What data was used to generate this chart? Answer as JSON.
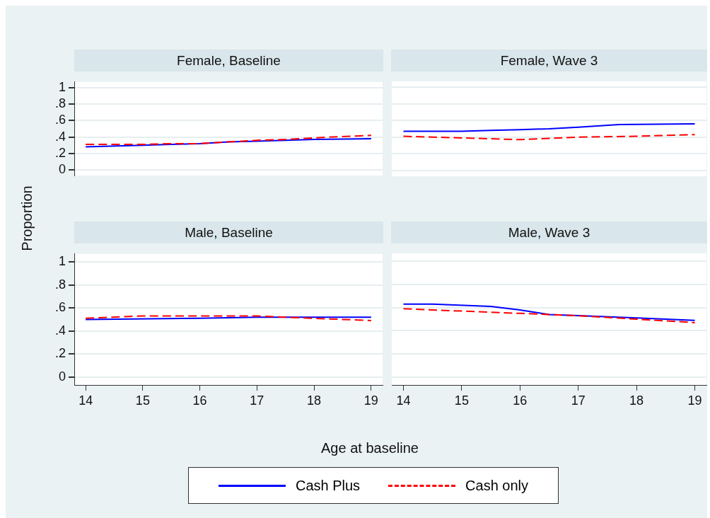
{
  "chart_data": [
    {
      "type": "line",
      "title": "Female, Baseline",
      "legend": "bottom",
      "xlim": [
        13.8,
        19.2
      ],
      "ylim": [
        -0.07,
        1.07
      ],
      "yticks": [
        0,
        {
          "value": 0.2,
          "label": ".2"
        },
        {
          "value": 0.4,
          "label": ".4"
        },
        {
          "value": 0.6,
          "label": ".6"
        },
        {
          "value": 0.8,
          "label": ".8"
        },
        1
      ],
      "grid": "y",
      "tick_labels": "y",
      "series": [
        {
          "name": "Cash Plus",
          "color": "#0000ff",
          "line_style": "solid",
          "x": [
            14,
            15,
            15.5,
            16,
            16.5,
            17,
            17.5,
            18,
            19
          ],
          "values": [
            0.28,
            0.3,
            0.31,
            0.32,
            0.34,
            0.35,
            0.36,
            0.37,
            0.38
          ]
        },
        {
          "name": "Cash only",
          "color": "#ff0000",
          "line_style": "dashed",
          "x": [
            14,
            15,
            15.5,
            16,
            16.5,
            17,
            17.5,
            18,
            19
          ],
          "values": [
            0.31,
            0.31,
            0.32,
            0.32,
            0.34,
            0.36,
            0.37,
            0.39,
            0.42
          ]
        }
      ]
    },
    {
      "type": "line",
      "title": "Female, Wave 3",
      "xlim": [
        13.8,
        19.2
      ],
      "ylim": [
        -0.07,
        1.07
      ],
      "yticks": [
        0,
        0.2,
        0.4,
        0.6,
        0.8,
        1
      ],
      "grid": "y",
      "tick_labels": false,
      "series": [
        {
          "color": "#0000ff",
          "line_style": "solid",
          "x": [
            14,
            15,
            15.5,
            16,
            16.5,
            17,
            17.7,
            19
          ],
          "values": [
            0.47,
            0.47,
            0.48,
            0.49,
            0.5,
            0.52,
            0.55,
            0.56
          ]
        },
        {
          "color": "#ff0000",
          "line_style": "dashed",
          "x": [
            14,
            15,
            16,
            17,
            18,
            19
          ],
          "values": [
            0.41,
            0.39,
            0.37,
            0.4,
            0.41,
            0.43
          ]
        }
      ]
    },
    {
      "type": "line",
      "title": "Male, Baseline",
      "xlabel": "Age at baseline",
      "ylabel": "Proportion",
      "xlim": [
        13.8,
        19.2
      ],
      "ylim": [
        -0.07,
        1.07
      ],
      "xticks": [
        14,
        15,
        16,
        17,
        18,
        19
      ],
      "yticks": [
        0,
        {
          "value": 0.2,
          "label": ".2"
        },
        {
          "value": 0.4,
          "label": ".4"
        },
        {
          "value": 0.6,
          "label": ".6"
        },
        {
          "value": 0.8,
          "label": ".8"
        },
        1
      ],
      "grid": "y",
      "series": [
        {
          "color": "#0000ff",
          "line_style": "solid",
          "x": [
            14,
            16,
            17,
            18,
            19
          ],
          "values": [
            0.5,
            0.51,
            0.52,
            0.52,
            0.52
          ]
        },
        {
          "color": "#ff0000",
          "line_style": "dashed",
          "x": [
            14,
            15,
            16,
            16.5,
            17,
            17.5,
            18,
            18.5,
            19
          ],
          "values": [
            0.51,
            0.53,
            0.53,
            0.53,
            0.53,
            0.52,
            0.51,
            0.5,
            0.49
          ]
        }
      ]
    },
    {
      "type": "line",
      "title": "Male, Wave 3",
      "xlim": [
        13.8,
        19.2
      ],
      "ylim": [
        -0.07,
        1.07
      ],
      "xticks": [
        14,
        15,
        16,
        17,
        18,
        19
      ],
      "yticks": [
        0,
        0.2,
        0.4,
        0.6,
        0.8,
        1
      ],
      "grid": "y",
      "tick_labels": "x",
      "series": [
        {
          "color": "#0000ff",
          "line_style": "solid",
          "x": [
            14,
            14.5,
            15.5,
            16,
            16.5,
            17,
            18,
            19
          ],
          "values": [
            0.63,
            0.63,
            0.61,
            0.58,
            0.54,
            0.53,
            0.51,
            0.49
          ]
        },
        {
          "color": "#ff0000",
          "line_style": "dashed",
          "x": [
            14,
            15,
            16,
            16.5,
            17,
            18,
            19
          ],
          "values": [
            0.59,
            0.57,
            0.55,
            0.54,
            0.53,
            0.5,
            0.47
          ]
        }
      ]
    }
  ]
}
